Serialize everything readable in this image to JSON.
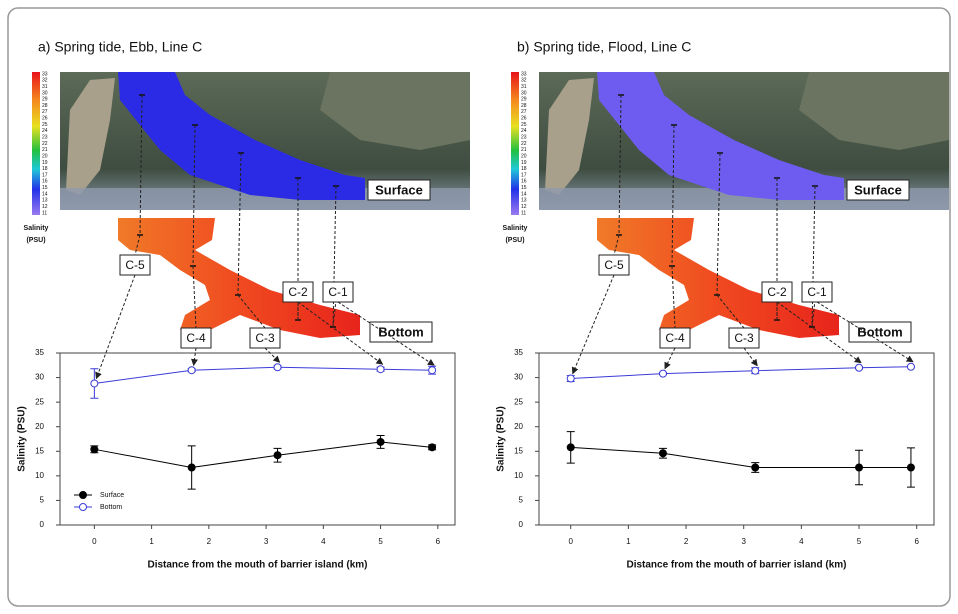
{
  "chart_data": [
    {
      "type": "line",
      "title": "a) Spring tide, Ebb, Line C",
      "x": [
        0,
        1.7,
        3.2,
        5,
        5.9
      ],
      "series": [
        {
          "name": "Surface",
          "color": "#000000",
          "marker": "filled",
          "values": [
            15.4,
            11.7,
            14.2,
            16.9,
            15.8
          ],
          "errors": [
            0.7,
            4.4,
            1.4,
            1.3,
            0.5
          ]
        },
        {
          "name": "Bottom",
          "color": "#3b3bd8",
          "marker": "open",
          "values": [
            28.8,
            31.5,
            32.1,
            31.7,
            31.5
          ],
          "errors": [
            3,
            0.3,
            0.3,
            0.4,
            0.8
          ]
        }
      ],
      "xlim": [
        -0.6,
        6.3
      ],
      "xticks": [
        0,
        1,
        2,
        3,
        4,
        5,
        6
      ],
      "ylim": [
        0,
        35
      ],
      "yticks": [
        0,
        5,
        10,
        15,
        20,
        25,
        30,
        35
      ],
      "xlabel": "Distance from the mouth of barrier island (km)",
      "ylabel": "Salinity (PSU)",
      "legend": "lower left",
      "station_labels": [
        "C-5",
        "C-4",
        "C-3",
        "C-2",
        "C-1"
      ],
      "layer_labels": [
        "Surface",
        "Bottom"
      ],
      "colorbar_ticks": [
        33,
        32,
        31,
        30,
        29,
        28,
        27,
        26,
        25,
        24,
        23,
        22,
        21,
        20,
        19,
        18,
        17,
        16,
        15,
        14,
        13,
        12,
        11
      ],
      "colorbar_label": [
        "Salinity",
        "(PSU)"
      ]
    },
    {
      "type": "line",
      "title": "b) Spring tide, Flood, Line C",
      "x": [
        0,
        1.6,
        3.2,
        5,
        5.9
      ],
      "series": [
        {
          "color": "#000000",
          "marker": "filled",
          "values": [
            15.8,
            14.6,
            11.7,
            11.7,
            11.7
          ],
          "errors": [
            3.2,
            1,
            1,
            3.5,
            4
          ]
        },
        {
          "color": "#3b3bd8",
          "marker": "open",
          "values": [
            29.8,
            30.8,
            31.4,
            32,
            32.2
          ],
          "errors": [
            0.6,
            0.2,
            0.6,
            0.2,
            0.1
          ]
        }
      ],
      "xlim": [
        -0.55,
        6.3
      ],
      "xticks": [
        0,
        1,
        2,
        3,
        4,
        5,
        6
      ],
      "ylim": [
        0,
        35
      ],
      "yticks": [
        0,
        5,
        10,
        15,
        20,
        25,
        30,
        35
      ],
      "xlabel": "Distance from the mouth of barrier island (km)",
      "ylabel": "Salinity (PSU)",
      "legend": false,
      "station_labels": [
        "C-5",
        "C-4",
        "C-3",
        "C-2",
        "C-1"
      ],
      "layer_labels": [
        "Surface",
        "Bottom"
      ],
      "colorbar_ticks": [
        33,
        32,
        31,
        30,
        29,
        28,
        27,
        26,
        25,
        24,
        23,
        22,
        21,
        20,
        19,
        18,
        17,
        16,
        15,
        14,
        13,
        12,
        11
      ],
      "colorbar_label": [
        "Salinity",
        "(PSU)"
      ]
    }
  ]
}
